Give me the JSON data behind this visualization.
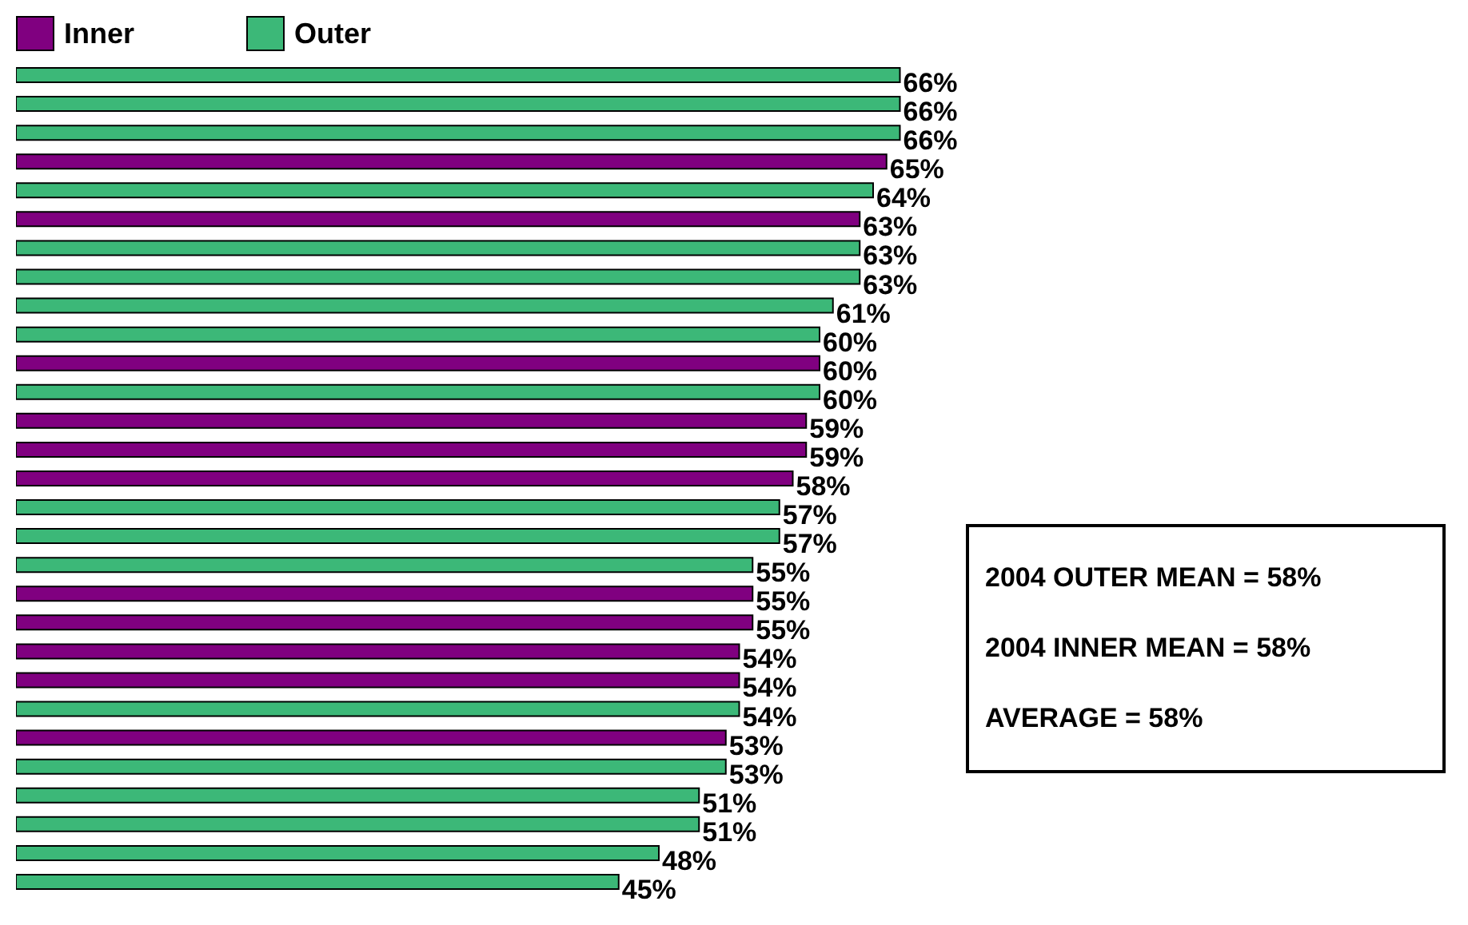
{
  "chart_data": {
    "type": "bar",
    "orientation": "horizontal",
    "stacked": true,
    "tick_labels": false,
    "legend": "top left",
    "categories": [
      null,
      null,
      null,
      null,
      null,
      null,
      null,
      null,
      null,
      null,
      null,
      null,
      null,
      null,
      null,
      null,
      null,
      null,
      null,
      null,
      null,
      null,
      null,
      null,
      null,
      null,
      null,
      null,
      null
    ],
    "series": [
      {
        "name": "Inner",
        "color": "#800080",
        "values": [
          null,
          null,
          null,
          65,
          null,
          63,
          null,
          null,
          null,
          null,
          60,
          null,
          59,
          59,
          58,
          null,
          null,
          null,
          55,
          55,
          54,
          54,
          null,
          53,
          null,
          null,
          null,
          null,
          null
        ],
        "value_labels": [
          null,
          null,
          null,
          "65%",
          null,
          "63%",
          null,
          null,
          null,
          null,
          "60%",
          null,
          "59%",
          "59%",
          "58%",
          null,
          null,
          null,
          "55%",
          "55%",
          "54%",
          "54%",
          null,
          "53%",
          null,
          null,
          null,
          null,
          null
        ]
      },
      {
        "name": "Outer",
        "color": "#3cb878",
        "values": [
          66,
          66,
          66,
          null,
          64,
          null,
          63,
          63,
          61,
          60,
          null,
          60,
          null,
          null,
          null,
          57,
          57,
          55,
          null,
          null,
          null,
          null,
          54,
          null,
          53,
          51,
          51,
          48,
          45
        ],
        "value_labels": [
          "66%",
          "66%",
          "66%",
          null,
          "64%",
          null,
          "63%",
          "63%",
          "61%",
          "60%",
          null,
          "60%",
          null,
          null,
          null,
          "57%",
          "57%",
          "55%",
          null,
          null,
          null,
          null,
          "54%",
          null,
          "53%",
          "51%",
          "51%",
          "48%",
          "45%"
        ]
      }
    ],
    "annotations": [
      "2004 OUTER MEAN = 58%",
      "2004 INNER MEAN = 58%",
      "AVERAGE = 58%"
    ]
  }
}
